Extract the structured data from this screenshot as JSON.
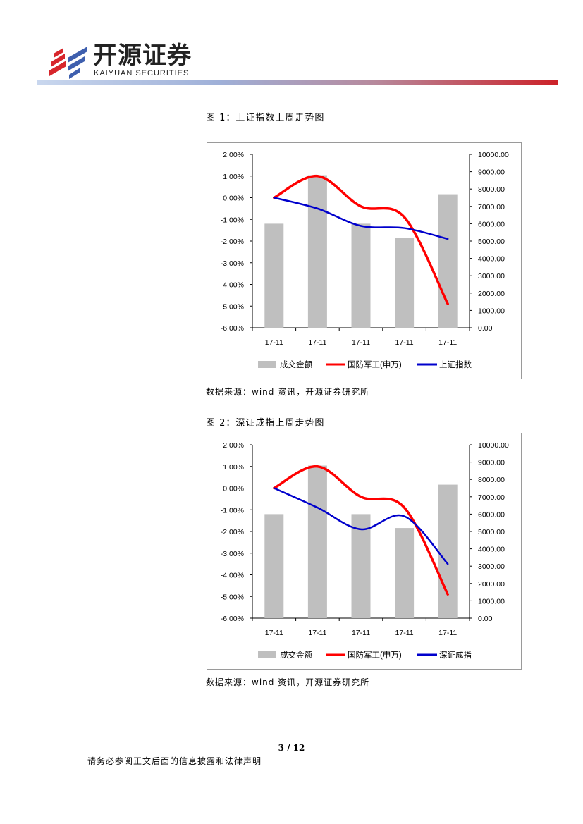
{
  "header": {
    "brand_cn": "开源证券",
    "brand_en": "KAIYUAN SECURITIES",
    "logo_icon": "kaiyuan-logo-icon",
    "colors": {
      "bar_start": "#c9d7ee",
      "bar_end": "#cc2128",
      "logo_red": "#d7262c",
      "logo_blue": "#3e5fae"
    }
  },
  "figures": [
    {
      "title": "图 1：上证指数上周走势图",
      "source": "数据来源：wind 资讯，开源证券研究所",
      "chart_data": {
        "type": "bar",
        "categories": [
          "17-11",
          "17-11",
          "17-11",
          "17-11",
          "17-11"
        ],
        "y_left": {
          "lim": [
            -6,
            2
          ],
          "ticks": [
            "2.00%",
            "1.00%",
            "0.00%",
            "-1.00%",
            "-2.00%",
            "-3.00%",
            "-4.00%",
            "-5.00%",
            "-6.00%"
          ]
        },
        "y_right": {
          "lim": [
            0,
            10000
          ],
          "ticks": [
            "10000.00",
            "9000.00",
            "8000.00",
            "7000.00",
            "6000.00",
            "5000.00",
            "4000.00",
            "3000.00",
            "2000.00",
            "1000.00",
            "0.00"
          ]
        },
        "legend_position": "bottom",
        "series": [
          {
            "name": "成交金额",
            "kind": "bar",
            "axis": "right",
            "color": "#bfbfbf",
            "values": [
              6000,
              8800,
              6000,
              5200,
              7700
            ]
          },
          {
            "name": "国防军工(申万)",
            "kind": "line",
            "axis": "left",
            "color": "#ff0000",
            "values": [
              0.0,
              1.0,
              -0.4,
              -0.9,
              -4.9
            ]
          },
          {
            "name": "上证指数",
            "kind": "line",
            "axis": "left",
            "color": "#0000cc",
            "values": [
              0.0,
              -0.5,
              -1.3,
              -1.4,
              -1.9
            ]
          }
        ]
      }
    },
    {
      "title": "图 2：深证成指上周走势图",
      "source": "数据来源：wind 资讯，开源证券研究所",
      "chart_data": {
        "type": "bar",
        "categories": [
          "17-11",
          "17-11",
          "17-11",
          "17-11",
          "17-11"
        ],
        "y_left": {
          "lim": [
            -6,
            2
          ],
          "ticks": [
            "2.00%",
            "1.00%",
            "0.00%",
            "-1.00%",
            "-2.00%",
            "-3.00%",
            "-4.00%",
            "-5.00%",
            "-6.00%"
          ]
        },
        "y_right": {
          "lim": [
            0,
            10000
          ],
          "ticks": [
            "10000.00",
            "9000.00",
            "8000.00",
            "7000.00",
            "6000.00",
            "5000.00",
            "4000.00",
            "3000.00",
            "2000.00",
            "1000.00",
            "0.00"
          ]
        },
        "legend_position": "bottom",
        "series": [
          {
            "name": "成交金额",
            "kind": "bar",
            "axis": "right",
            "color": "#bfbfbf",
            "values": [
              6000,
              8800,
              6000,
              5200,
              7700
            ]
          },
          {
            "name": "国防军工(申万)",
            "kind": "line",
            "axis": "left",
            "color": "#ff0000",
            "values": [
              0.0,
              1.0,
              -0.4,
              -0.9,
              -4.9
            ]
          },
          {
            "name": "深证成指",
            "kind": "line",
            "axis": "left",
            "color": "#0000cc",
            "values": [
              0.0,
              -0.9,
              -1.9,
              -1.3,
              -3.5
            ]
          }
        ]
      }
    }
  ],
  "footer": {
    "page_number": "3 / 12",
    "disclaimer": "请务必参阅正文后面的信息披露和法律声明"
  }
}
